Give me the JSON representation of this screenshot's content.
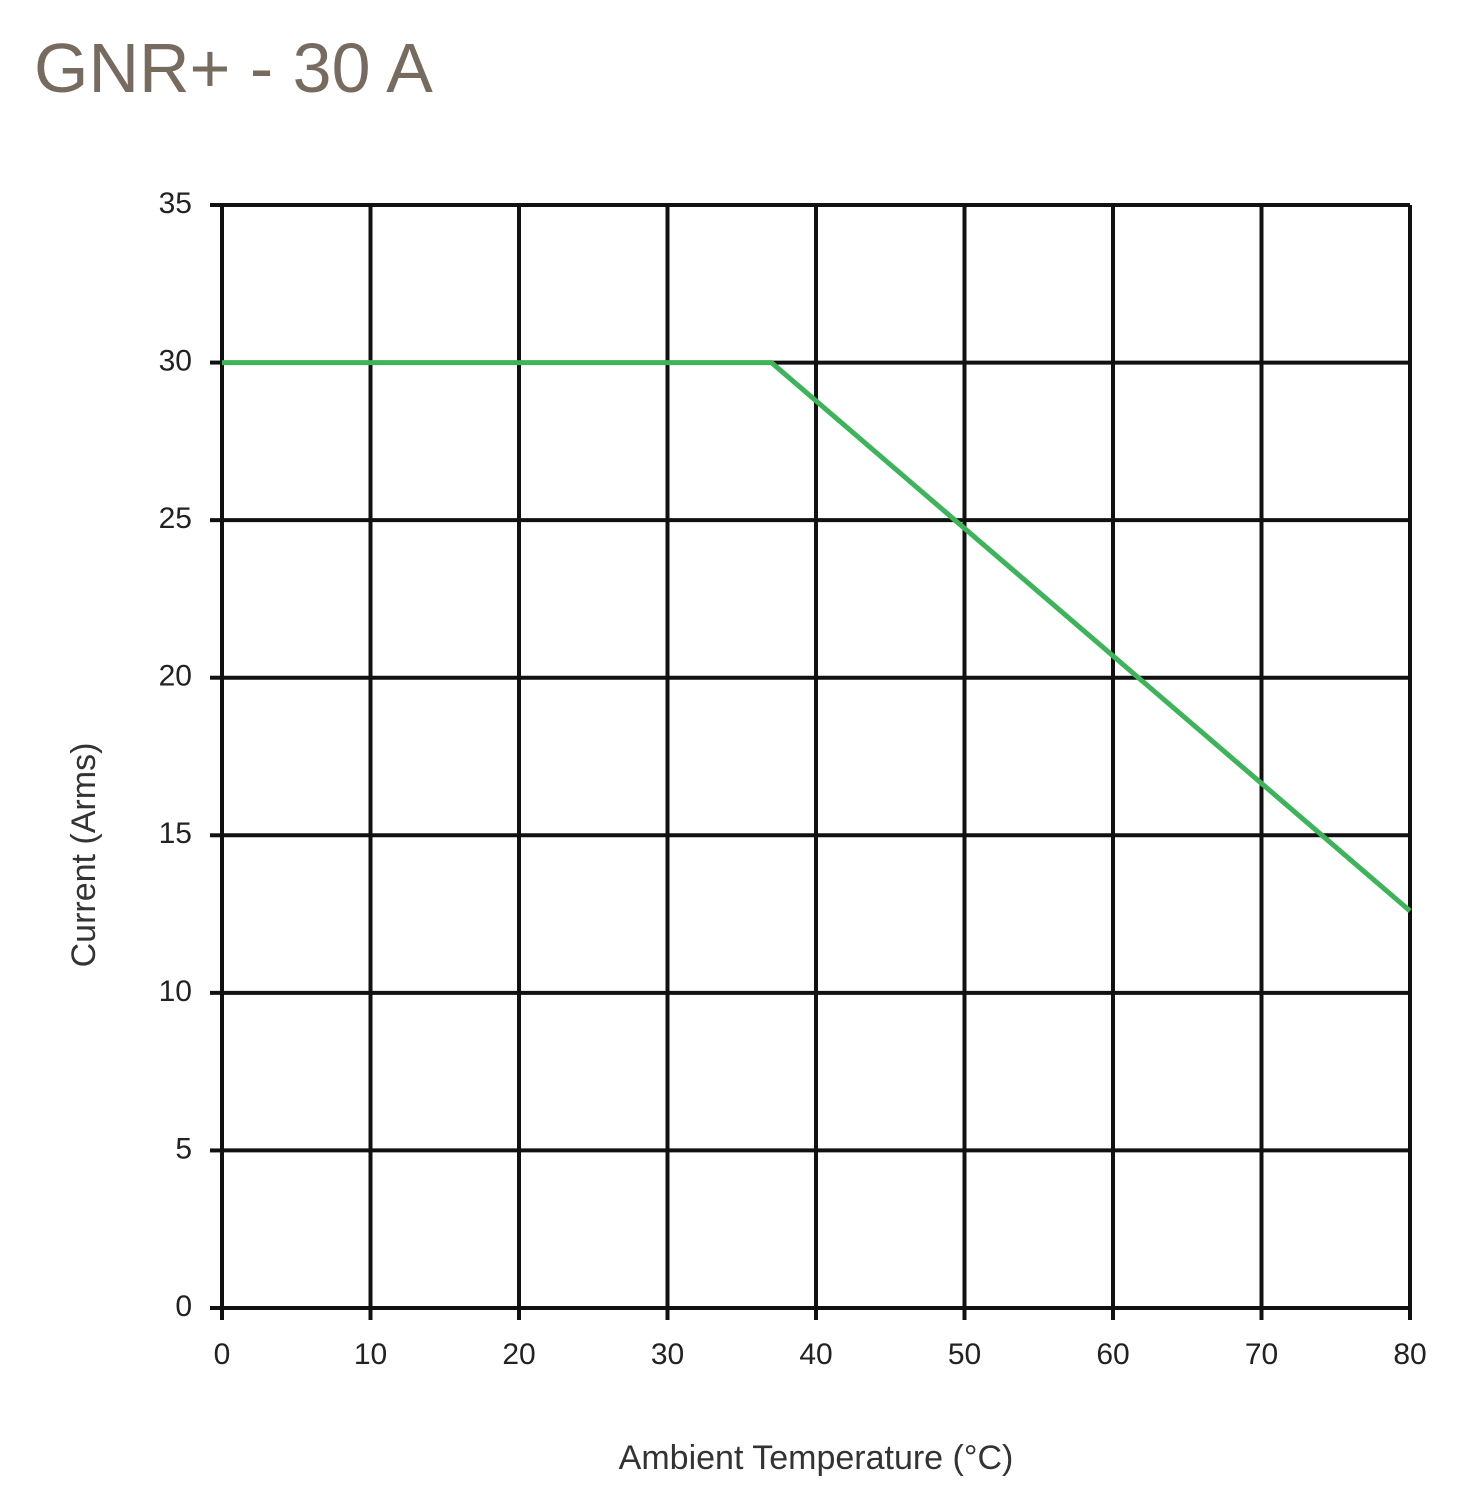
{
  "chart_data": {
    "type": "line",
    "title": "GNR+ - 30 A",
    "x_label": "Ambient Temperature (°C)",
    "y_label": "Current (Arms)",
    "series": [
      {
        "name": null,
        "color": "#3db35a",
        "x": [
          0,
          37,
          80
        ],
        "values": [
          30,
          30,
          12.6
        ]
      }
    ],
    "xlim": [
      0,
      80
    ],
    "xticks": [
      0,
      10,
      20,
      30,
      40,
      50,
      60,
      70,
      80
    ],
    "ylim": [
      0,
      35
    ],
    "yticks": [
      0,
      5,
      10,
      15,
      20,
      25,
      30,
      35
    ],
    "grid": true
  }
}
